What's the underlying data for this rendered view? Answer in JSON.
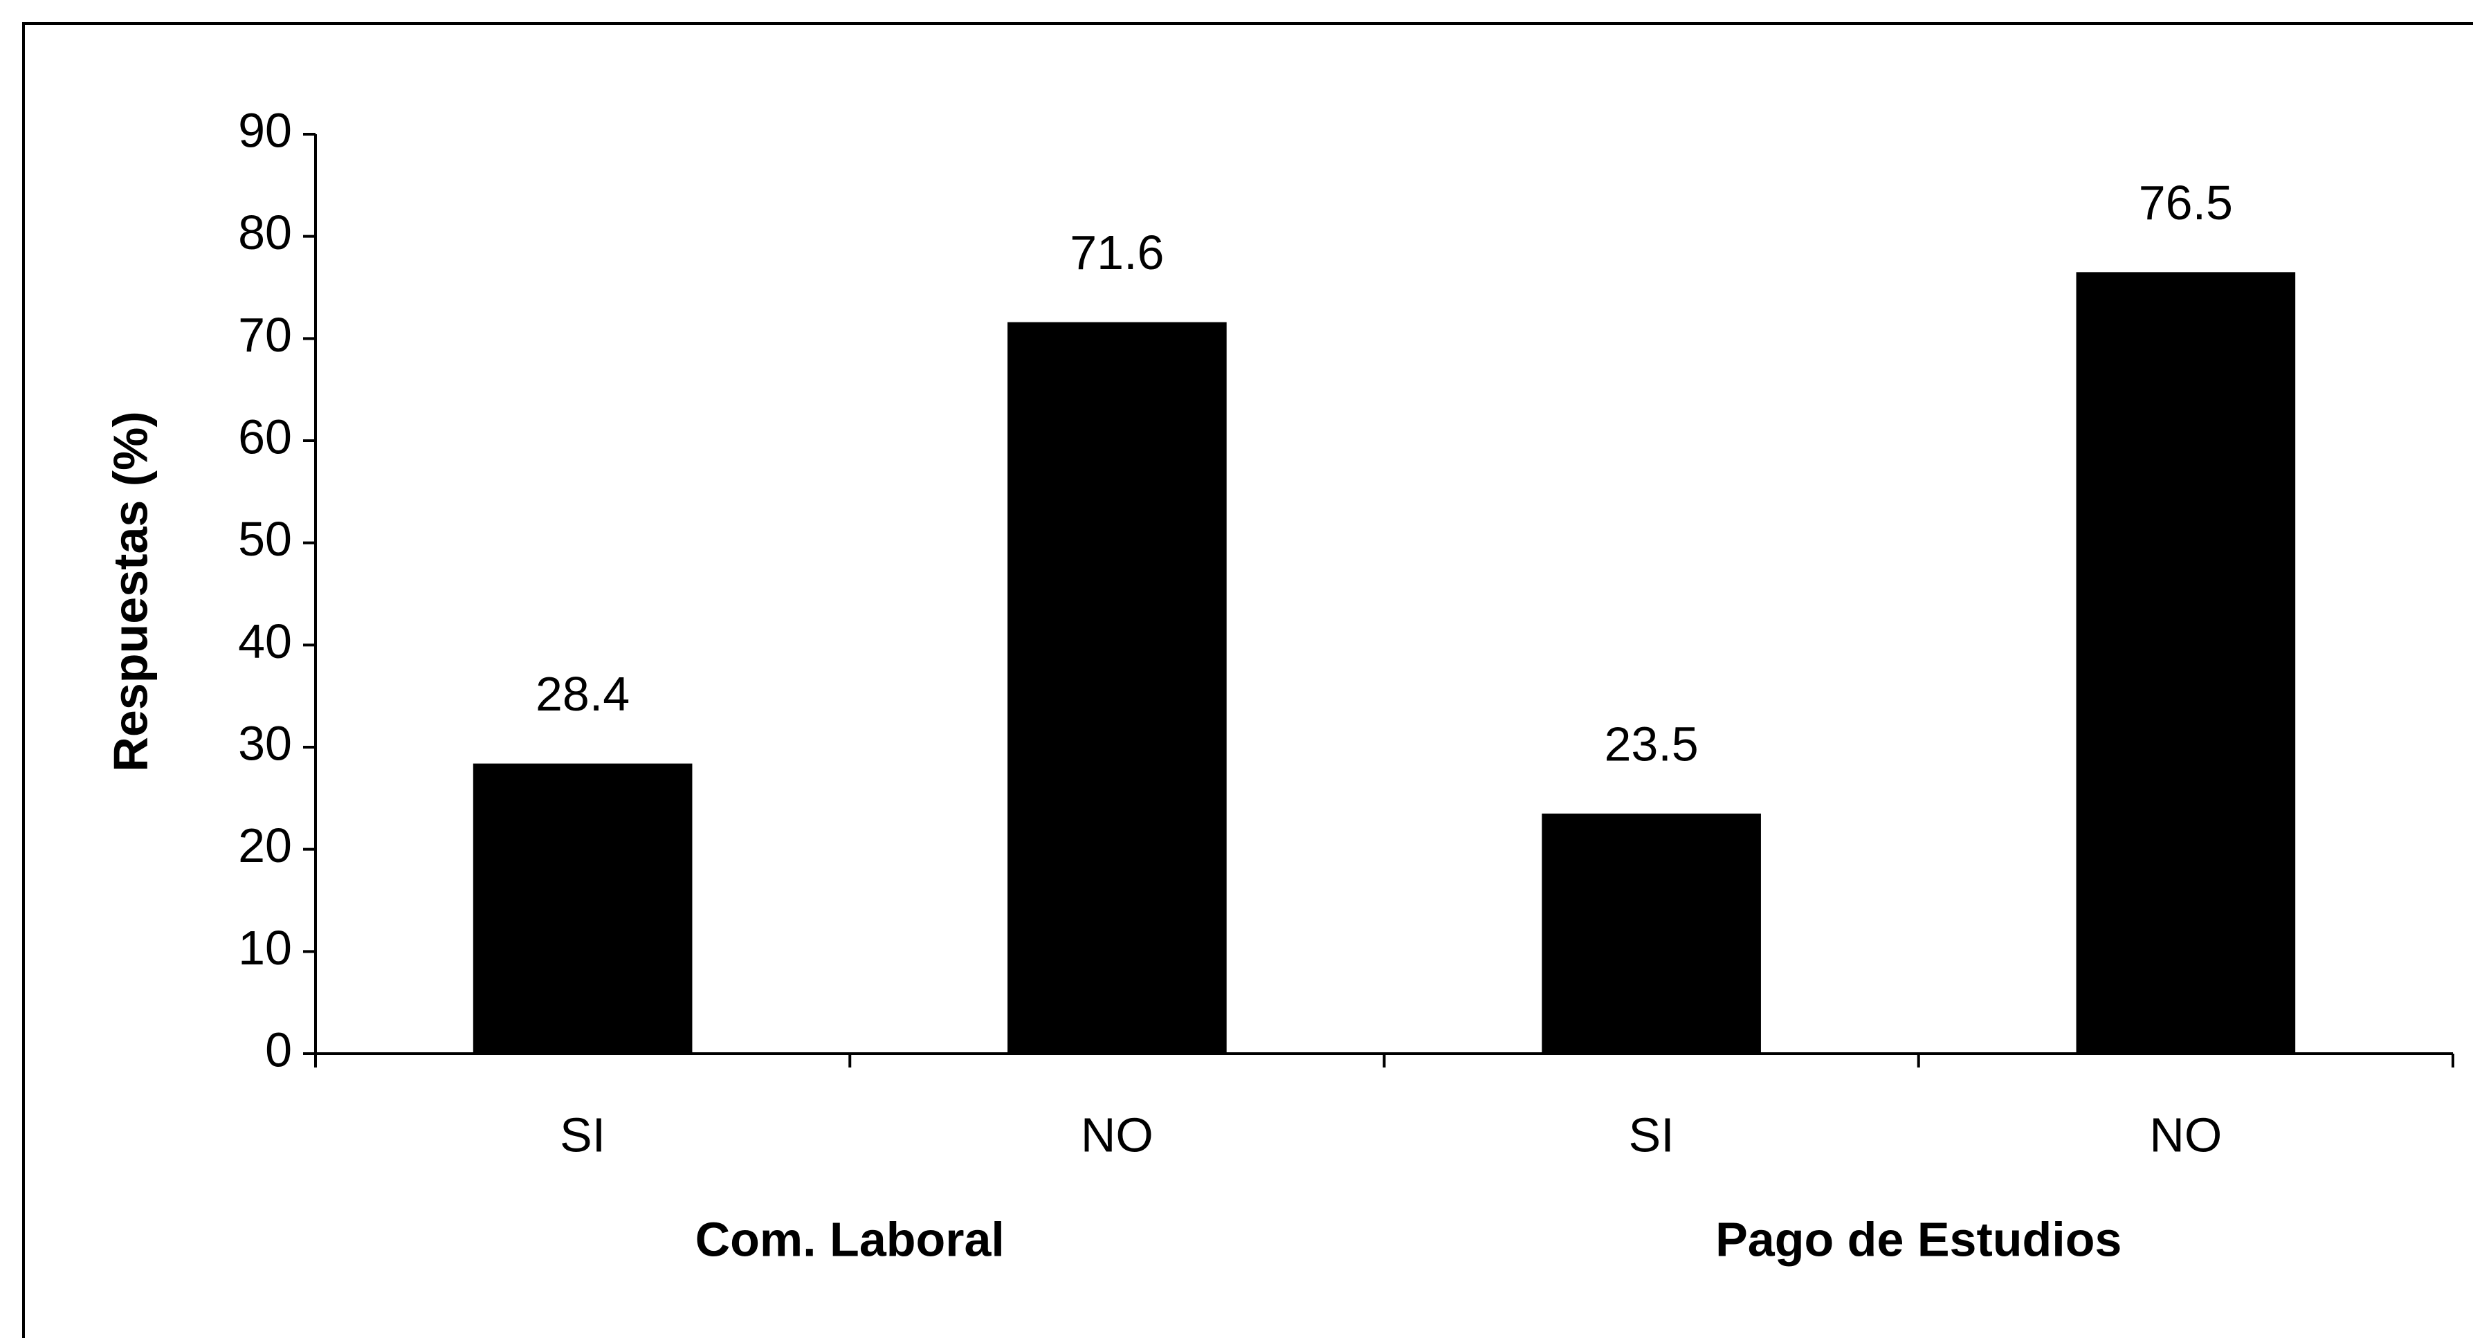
{
  "chart_data": {
    "type": "bar",
    "y_axis_label": "Respuestas (%)",
    "categories": [
      "SI",
      "NO",
      "SI",
      "NO"
    ],
    "groups": [
      {
        "name": "Com. Laboral",
        "categories": [
          0,
          1
        ]
      },
      {
        "name": "Pago de Estudios",
        "categories": [
          2,
          3
        ]
      }
    ],
    "values": [
      28.4,
      71.6,
      23.5,
      76.5
    ],
    "color": "#000000",
    "ylim": [
      0,
      90
    ],
    "yticks": [
      0,
      10,
      20,
      30,
      40,
      50,
      60,
      70,
      80,
      90
    ],
    "grid": false
  }
}
